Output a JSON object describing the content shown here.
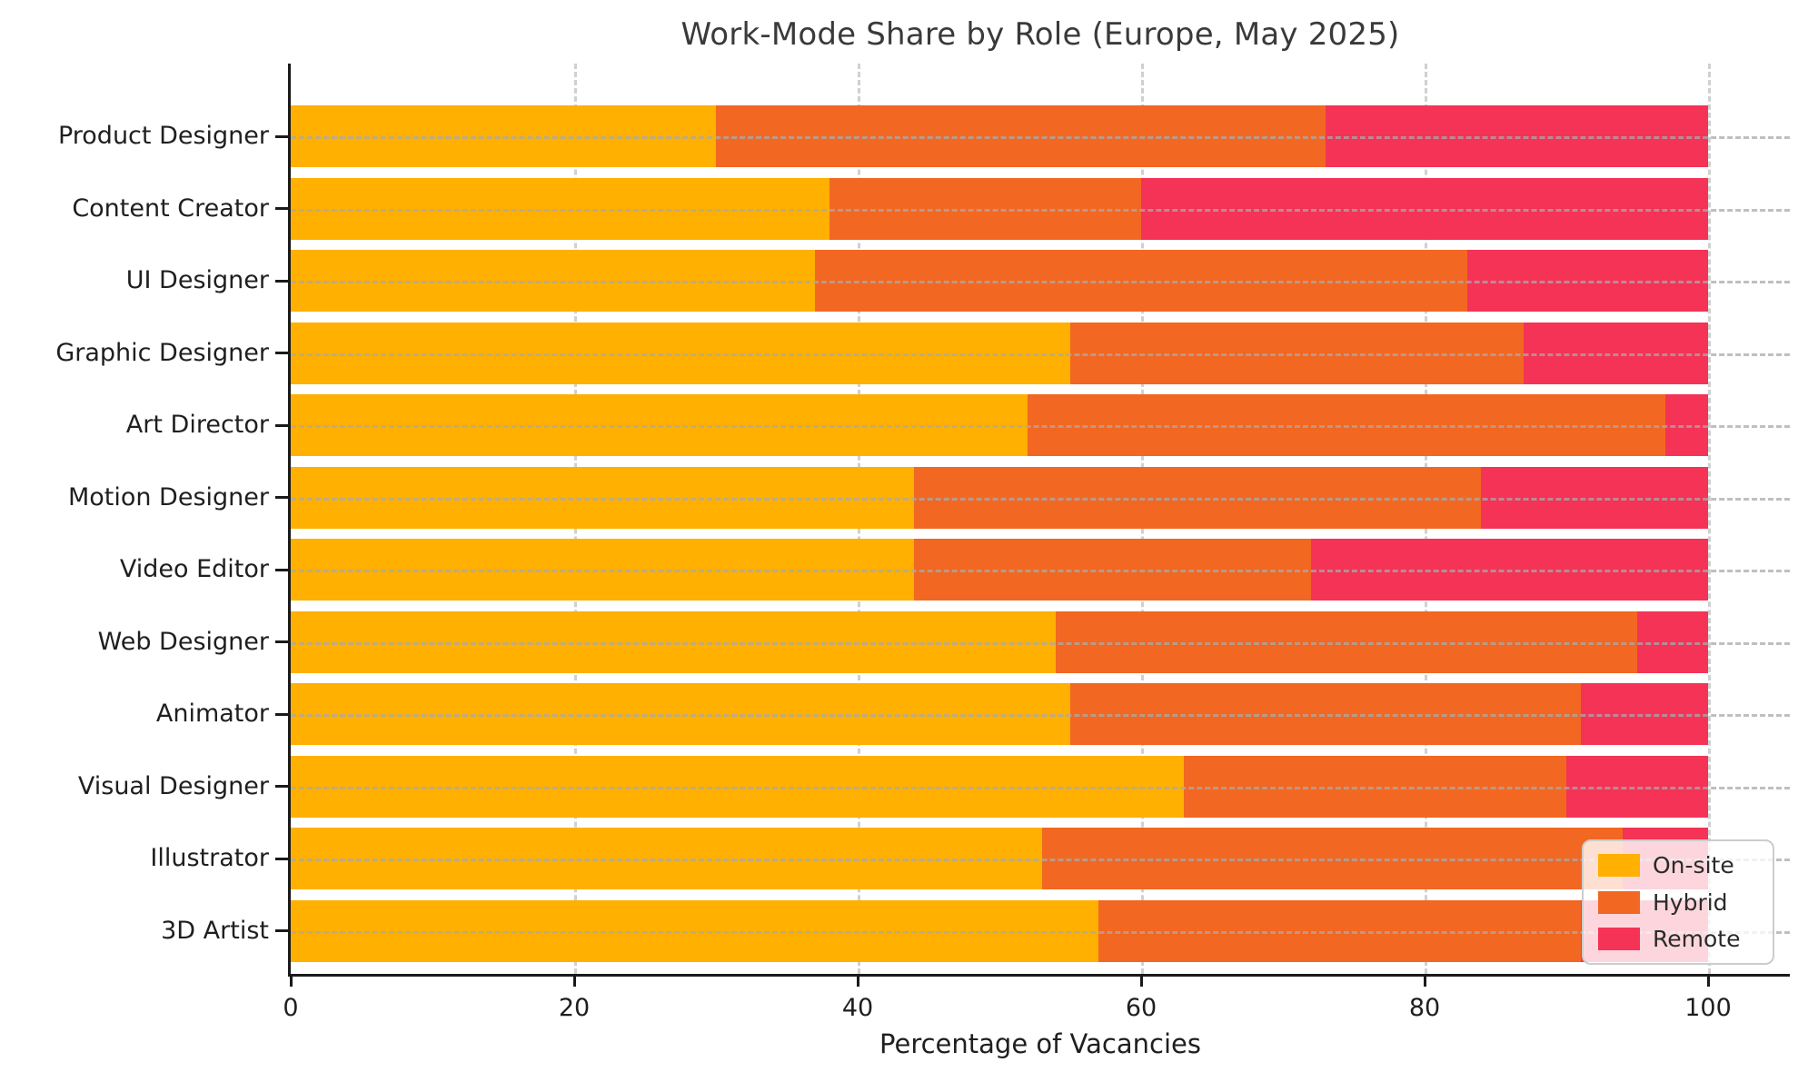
{
  "chart_data": {
    "type": "bar",
    "orientation": "horizontal",
    "stacked": true,
    "title": "Work-Mode Share by Role (Europe, May 2025)",
    "xlabel": "Percentage of Vacancies",
    "ylabel": "",
    "xlim": [
      0,
      105.8
    ],
    "xticks": [
      0,
      20,
      40,
      60,
      80,
      100
    ],
    "grid": "both-axes-dashed-over-bars",
    "legend_position": "lower-right",
    "categories": [
      "Product Designer",
      "Content Creator",
      "UI Designer",
      "Graphic Designer",
      "Art Director",
      "Motion Designer",
      "Video Editor",
      "Web Designer",
      "Animator",
      "Visual Designer",
      "Illustrator",
      "3D Artist"
    ],
    "series": [
      {
        "name": "On-site",
        "color": "#FFB000",
        "values": [
          30,
          38,
          37,
          55,
          52,
          44,
          44,
          54,
          55,
          63,
          53,
          57
        ]
      },
      {
        "name": "Hybrid",
        "color": "#F26722",
        "values": [
          43,
          22,
          46,
          32,
          45,
          40,
          28,
          41,
          36,
          27,
          41,
          34
        ]
      },
      {
        "name": "Remote",
        "color": "#F43356",
        "values": [
          27,
          40,
          17,
          13,
          3,
          16,
          28,
          5,
          9,
          10,
          6,
          9
        ]
      }
    ]
  }
}
